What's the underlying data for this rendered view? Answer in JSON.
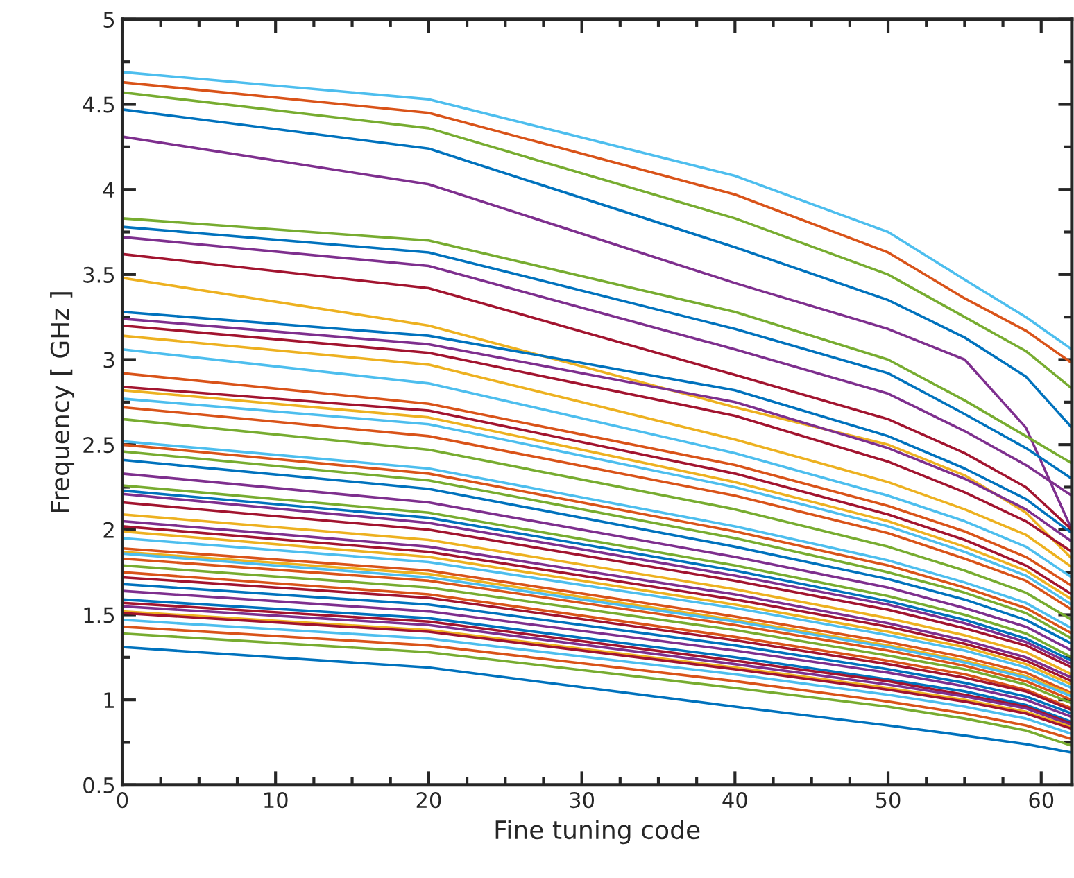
{
  "chart_data": {
    "type": "line",
    "xlabel": "Fine tuning code",
    "ylabel": "Frequency [ GHz ]",
    "x": [
      0,
      20,
      40,
      50,
      55,
      59,
      62
    ],
    "xlim": [
      0,
      62
    ],
    "xticks": [
      0,
      10,
      20,
      30,
      40,
      50,
      60
    ],
    "ylim": [
      0.5,
      5
    ],
    "yticks": [
      0.5,
      1,
      1.5,
      2,
      2.5,
      3,
      3.5,
      4,
      4.5,
      5
    ],
    "grid": false,
    "marker": "none",
    "line_style": "solid",
    "series": [
      {
        "color": "#4dbeee",
        "values": [
          4.69,
          4.53,
          4.08,
          3.75,
          3.47,
          3.25,
          3.06
        ]
      },
      {
        "color": "#d95319",
        "values": [
          4.63,
          4.45,
          3.97,
          3.63,
          3.36,
          3.17,
          2.98
        ]
      },
      {
        "color": "#77ac30",
        "values": [
          4.57,
          4.36,
          3.83,
          3.5,
          3.25,
          3.05,
          2.83
        ]
      },
      {
        "color": "#0072bd",
        "values": [
          4.47,
          4.24,
          3.66,
          3.35,
          3.13,
          2.9,
          2.6
        ]
      },
      {
        "color": "#7e2f8e",
        "values": [
          4.31,
          4.03,
          3.45,
          3.18,
          3.0,
          2.6,
          2.0
        ]
      },
      {
        "color": "#77ac30",
        "values": [
          3.83,
          3.7,
          3.28,
          3.0,
          2.76,
          2.55,
          2.39
        ]
      },
      {
        "color": "#0072bd",
        "values": [
          3.78,
          3.63,
          3.18,
          2.92,
          2.68,
          2.48,
          2.3
        ]
      },
      {
        "color": "#7e2f8e",
        "values": [
          3.72,
          3.55,
          3.06,
          2.8,
          2.58,
          2.38,
          2.2
        ]
      },
      {
        "color": "#a2142f",
        "values": [
          3.62,
          3.42,
          2.91,
          2.65,
          2.45,
          2.25,
          2.0
        ]
      },
      {
        "color": "#edb120",
        "values": [
          3.48,
          3.2,
          2.72,
          2.5,
          2.32,
          2.1,
          1.83
        ]
      },
      {
        "color": "#0072bd",
        "values": [
          3.28,
          3.14,
          2.82,
          2.55,
          2.36,
          2.18,
          1.98
        ]
      },
      {
        "color": "#7e2f8e",
        "values": [
          3.24,
          3.09,
          2.75,
          2.48,
          2.3,
          2.12,
          1.93
        ]
      },
      {
        "color": "#a2142f",
        "values": [
          3.2,
          3.04,
          2.67,
          2.4,
          2.22,
          2.05,
          1.87
        ]
      },
      {
        "color": "#edb120",
        "values": [
          3.14,
          2.97,
          2.53,
          2.28,
          2.12,
          1.97,
          1.78
        ]
      },
      {
        "color": "#4dbeee",
        "values": [
          3.06,
          2.86,
          2.45,
          2.2,
          2.05,
          1.9,
          1.72
        ]
      },
      {
        "color": "#d95319",
        "values": [
          2.92,
          2.74,
          2.38,
          2.14,
          1.99,
          1.84,
          1.67
        ]
      },
      {
        "color": "#a2142f",
        "values": [
          2.84,
          2.7,
          2.33,
          2.09,
          1.94,
          1.79,
          1.62
        ]
      },
      {
        "color": "#edb120",
        "values": [
          2.82,
          2.66,
          2.28,
          2.05,
          1.9,
          1.76,
          1.59
        ]
      },
      {
        "color": "#4dbeee",
        "values": [
          2.77,
          2.62,
          2.25,
          2.02,
          1.87,
          1.73,
          1.56
        ]
      },
      {
        "color": "#d95319",
        "values": [
          2.72,
          2.55,
          2.2,
          1.98,
          1.83,
          1.7,
          1.53
        ]
      },
      {
        "color": "#77ac30",
        "values": [
          2.65,
          2.47,
          2.12,
          1.9,
          1.76,
          1.63,
          1.47
        ]
      },
      {
        "color": "#4dbeee",
        "values": [
          2.52,
          2.36,
          2.02,
          1.82,
          1.69,
          1.57,
          1.42
        ]
      },
      {
        "color": "#d95319",
        "values": [
          2.5,
          2.33,
          1.99,
          1.79,
          1.66,
          1.54,
          1.39
        ]
      },
      {
        "color": "#77ac30",
        "values": [
          2.46,
          2.29,
          1.95,
          1.75,
          1.63,
          1.51,
          1.36
        ]
      },
      {
        "color": "#0072bd",
        "values": [
          2.41,
          2.24,
          1.9,
          1.71,
          1.59,
          1.47,
          1.33
        ]
      },
      {
        "color": "#7e2f8e",
        "values": [
          2.33,
          2.16,
          1.84,
          1.66,
          1.54,
          1.43,
          1.29
        ]
      },
      {
        "color": "#77ac30",
        "values": [
          2.26,
          2.1,
          1.79,
          1.61,
          1.5,
          1.39,
          1.25
        ]
      },
      {
        "color": "#0072bd",
        "values": [
          2.23,
          2.07,
          1.76,
          1.58,
          1.47,
          1.36,
          1.23
        ]
      },
      {
        "color": "#7e2f8e",
        "values": [
          2.21,
          2.04,
          1.73,
          1.56,
          1.45,
          1.34,
          1.21
        ]
      },
      {
        "color": "#a2142f",
        "values": [
          2.16,
          2.0,
          1.7,
          1.53,
          1.42,
          1.32,
          1.19
        ]
      },
      {
        "color": "#edb120",
        "values": [
          2.09,
          1.94,
          1.65,
          1.48,
          1.38,
          1.28,
          1.15
        ]
      },
      {
        "color": "#7e2f8e",
        "values": [
          2.05,
          1.9,
          1.62,
          1.45,
          1.35,
          1.25,
          1.13
        ]
      },
      {
        "color": "#a2142f",
        "values": [
          2.02,
          1.87,
          1.59,
          1.43,
          1.33,
          1.23,
          1.11
        ]
      },
      {
        "color": "#edb120",
        "values": [
          1.99,
          1.84,
          1.56,
          1.4,
          1.31,
          1.21,
          1.09
        ]
      },
      {
        "color": "#4dbeee",
        "values": [
          1.95,
          1.81,
          1.54,
          1.38,
          1.29,
          1.19,
          1.07
        ]
      },
      {
        "color": "#d95319",
        "values": [
          1.89,
          1.76,
          1.49,
          1.34,
          1.25,
          1.16,
          1.04
        ]
      },
      {
        "color": "#edb120",
        "values": [
          1.87,
          1.74,
          1.47,
          1.32,
          1.23,
          1.14,
          1.03
        ]
      },
      {
        "color": "#4dbeee",
        "values": [
          1.86,
          1.72,
          1.46,
          1.31,
          1.22,
          1.13,
          1.02
        ]
      },
      {
        "color": "#d95319",
        "values": [
          1.83,
          1.7,
          1.44,
          1.29,
          1.2,
          1.11,
          1.0
        ]
      },
      {
        "color": "#77ac30",
        "values": [
          1.79,
          1.66,
          1.41,
          1.26,
          1.18,
          1.09,
          0.98
        ]
      },
      {
        "color": "#d95319",
        "values": [
          1.75,
          1.62,
          1.37,
          1.23,
          1.15,
          1.06,
          0.95
        ]
      },
      {
        "color": "#a2142f",
        "values": [
          1.72,
          1.6,
          1.35,
          1.21,
          1.13,
          1.05,
          0.94
        ]
      },
      {
        "color": "#0072bd",
        "values": [
          1.68,
          1.56,
          1.32,
          1.18,
          1.1,
          1.02,
          0.92
        ]
      },
      {
        "color": "#7e2f8e",
        "values": [
          1.64,
          1.52,
          1.29,
          1.16,
          1.08,
          1.0,
          0.9
        ]
      },
      {
        "color": "#0072bd",
        "values": [
          1.59,
          1.48,
          1.25,
          1.12,
          1.05,
          0.97,
          0.87
        ]
      },
      {
        "color": "#a2142f",
        "values": [
          1.57,
          1.46,
          1.23,
          1.11,
          1.03,
          0.96,
          0.86
        ]
      },
      {
        "color": "#7e2f8e",
        "values": [
          1.55,
          1.44,
          1.21,
          1.09,
          1.02,
          0.95,
          0.85
        ]
      },
      {
        "color": "#edb120",
        "values": [
          1.52,
          1.41,
          1.19,
          1.07,
          1.0,
          0.93,
          0.84
        ]
      },
      {
        "color": "#a2142f",
        "values": [
          1.51,
          1.4,
          1.18,
          1.06,
          0.99,
          0.92,
          0.83
        ]
      },
      {
        "color": "#4dbeee",
        "values": [
          1.47,
          1.36,
          1.15,
          1.03,
          0.96,
          0.89,
          0.8
        ]
      },
      {
        "color": "#d95319",
        "values": [
          1.43,
          1.32,
          1.11,
          0.99,
          0.92,
          0.85,
          0.77
        ]
      },
      {
        "color": "#77ac30",
        "values": [
          1.39,
          1.28,
          1.07,
          0.96,
          0.89,
          0.82,
          0.73
        ]
      },
      {
        "color": "#0072bd",
        "values": [
          1.31,
          1.19,
          0.96,
          0.85,
          0.79,
          0.74,
          0.69
        ]
      }
    ]
  }
}
